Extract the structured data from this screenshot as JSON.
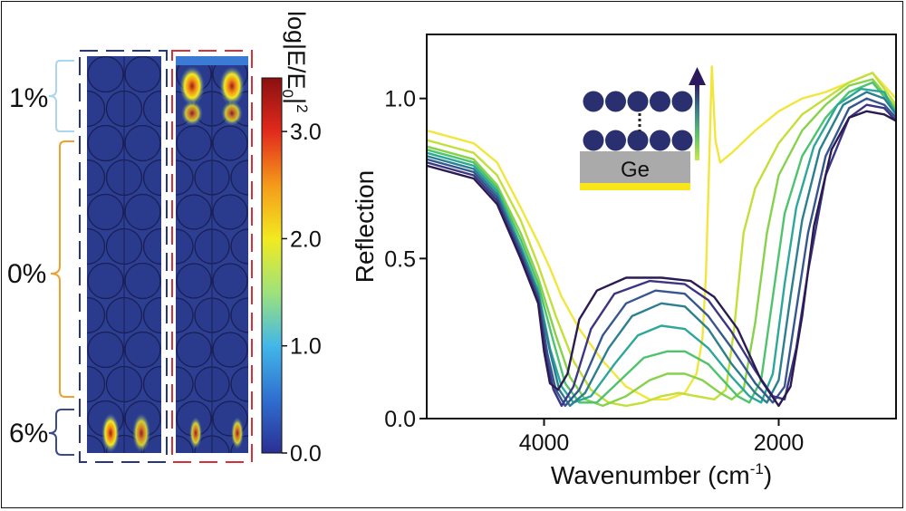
{
  "field_panel": {
    "colorbar": {
      "label": "log|E/E0|²",
      "ticks": [
        "0.0",
        "1.0",
        "2.0",
        "3.0"
      ],
      "tick_values": [
        0,
        1,
        2,
        3
      ],
      "range": [
        0,
        3.5
      ],
      "stops": [
        "#2b2f93",
        "#2f6fd0",
        "#42b7e8",
        "#9fe27a",
        "#f2ea20",
        "#f59a1a",
        "#e22a1c",
        "#8a1010"
      ]
    },
    "region_labels": [
      {
        "text": "1%",
        "color": "#aad6ee"
      },
      {
        "text": "0%",
        "color": "#f0a030"
      },
      {
        "text": "6%",
        "color": "#3a4a8a"
      }
    ],
    "frame_colors": {
      "left": "#2a3580",
      "right": "#d8303a"
    }
  },
  "chart_data": {
    "type": "line",
    "title": "",
    "xlabel": "Wavenumber (cm",
    "xlabel_superscript": "-1",
    "ylabel": "Reflection",
    "xlim": [
      5000,
      1000
    ],
    "ylim": [
      0,
      1.2
    ],
    "x_ticks": [
      4000,
      2000
    ],
    "y_ticks": [
      0.0,
      0.5,
      1.0
    ],
    "y_tick_labels": [
      "0.0",
      "0.5",
      "1.0"
    ],
    "grid": false,
    "legend": "none",
    "inset": {
      "substrate_label": "Ge",
      "arrow_colors": [
        "#2d1a5e",
        "#3b7a8c",
        "#5ec26a",
        "#c8e84a"
      ],
      "substrate_color": "#aaaaaa",
      "layer_color": "#f7e618",
      "sphere_color": "#2a2f6f"
    },
    "series": [
      {
        "color": "#f2e63d",
        "x": [
          5000,
          4600,
          4400,
          4200,
          4050,
          3950,
          3850,
          3700,
          3500,
          3300,
          3100,
          2950,
          2800,
          2700,
          2650,
          2620,
          2600,
          2570,
          2540,
          2500,
          2400,
          2200,
          2000,
          1800,
          1600,
          1400,
          1200,
          1000
        ],
        "y": [
          0.9,
          0.86,
          0.8,
          0.66,
          0.55,
          0.47,
          0.38,
          0.28,
          0.18,
          0.1,
          0.06,
          0.06,
          0.08,
          0.14,
          0.25,
          0.45,
          0.7,
          1.1,
          0.87,
          0.8,
          0.83,
          0.9,
          0.96,
          1.0,
          1.02,
          1.05,
          1.08,
          1.0
        ]
      },
      {
        "color": "#c2df3a",
        "x": [
          5000,
          4600,
          4400,
          4200,
          4050,
          3900,
          3750,
          3600,
          3450,
          3300,
          3150,
          3000,
          2850,
          2700,
          2550,
          2450,
          2380,
          2300,
          2200,
          2000,
          1800,
          1600,
          1400,
          1200,
          1000
        ],
        "y": [
          0.87,
          0.83,
          0.76,
          0.62,
          0.48,
          0.32,
          0.18,
          0.09,
          0.05,
          0.04,
          0.05,
          0.07,
          0.08,
          0.07,
          0.06,
          0.09,
          0.28,
          0.58,
          0.72,
          0.86,
          0.95,
          1.0,
          1.05,
          1.08,
          0.98
        ]
      },
      {
        "color": "#86d24a",
        "x": [
          5000,
          4600,
          4400,
          4200,
          4050,
          3900,
          3780,
          3650,
          3500,
          3300,
          3100,
          2950,
          2800,
          2650,
          2500,
          2400,
          2300,
          2200,
          2100,
          2000,
          1800,
          1600,
          1400,
          1200,
          1000
        ],
        "y": [
          0.85,
          0.81,
          0.73,
          0.58,
          0.44,
          0.26,
          0.13,
          0.06,
          0.04,
          0.07,
          0.12,
          0.14,
          0.14,
          0.12,
          0.08,
          0.06,
          0.09,
          0.3,
          0.58,
          0.76,
          0.9,
          0.98,
          1.04,
          1.06,
          0.97
        ]
      },
      {
        "color": "#4ec36d",
        "x": [
          5000,
          4600,
          4400,
          4200,
          4050,
          3920,
          3820,
          3700,
          3550,
          3350,
          3150,
          2950,
          2800,
          2600,
          2450,
          2350,
          2250,
          2150,
          2050,
          1950,
          1800,
          1600,
          1400,
          1200,
          1000
        ],
        "y": [
          0.84,
          0.8,
          0.72,
          0.56,
          0.42,
          0.24,
          0.11,
          0.05,
          0.05,
          0.12,
          0.19,
          0.21,
          0.21,
          0.17,
          0.11,
          0.07,
          0.05,
          0.12,
          0.38,
          0.64,
          0.82,
          0.94,
          1.02,
          1.05,
          0.96
        ]
      },
      {
        "color": "#2ca79a",
        "x": [
          5000,
          4600,
          4400,
          4200,
          4050,
          3950,
          3850,
          3750,
          3600,
          3400,
          3200,
          3000,
          2800,
          2600,
          2400,
          2250,
          2150,
          2050,
          1950,
          1850,
          1700,
          1500,
          1300,
          1100,
          1000
        ],
        "y": [
          0.83,
          0.79,
          0.71,
          0.54,
          0.4,
          0.22,
          0.1,
          0.05,
          0.07,
          0.17,
          0.26,
          0.29,
          0.28,
          0.22,
          0.13,
          0.07,
          0.05,
          0.14,
          0.42,
          0.66,
          0.85,
          0.98,
          1.03,
          1.02,
          0.95
        ]
      },
      {
        "color": "#2c7f8f",
        "x": [
          5000,
          4600,
          4400,
          4200,
          4050,
          3950,
          3870,
          3780,
          3650,
          3450,
          3250,
          3000,
          2800,
          2600,
          2400,
          2200,
          2100,
          2000,
          1900,
          1800,
          1650,
          1450,
          1250,
          1100,
          1000
        ],
        "y": [
          0.82,
          0.78,
          0.7,
          0.53,
          0.39,
          0.21,
          0.09,
          0.04,
          0.08,
          0.22,
          0.32,
          0.36,
          0.35,
          0.28,
          0.17,
          0.08,
          0.05,
          0.12,
          0.38,
          0.62,
          0.84,
          0.98,
          1.02,
          1.0,
          0.95
        ]
      },
      {
        "color": "#35578e",
        "x": [
          5000,
          4600,
          4400,
          4200,
          4050,
          3970,
          3900,
          3820,
          3700,
          3500,
          3300,
          3050,
          2800,
          2600,
          2400,
          2200,
          2050,
          1950,
          1850,
          1750,
          1600,
          1400,
          1250,
          1100,
          1000
        ],
        "y": [
          0.81,
          0.77,
          0.69,
          0.52,
          0.38,
          0.2,
          0.09,
          0.04,
          0.09,
          0.26,
          0.36,
          0.4,
          0.39,
          0.32,
          0.22,
          0.11,
          0.05,
          0.1,
          0.34,
          0.58,
          0.82,
          0.97,
          1.0,
          0.98,
          0.94
        ]
      },
      {
        "color": "#3c3583",
        "x": [
          5000,
          4600,
          4400,
          4200,
          4050,
          3980,
          3920,
          3850,
          3750,
          3600,
          3400,
          3100,
          2800,
          2600,
          2400,
          2200,
          2050,
          1950,
          1850,
          1750,
          1600,
          1400,
          1250,
          1100,
          1000
        ],
        "y": [
          0.8,
          0.76,
          0.68,
          0.51,
          0.37,
          0.19,
          0.09,
          0.04,
          0.1,
          0.28,
          0.39,
          0.43,
          0.42,
          0.37,
          0.27,
          0.15,
          0.07,
          0.06,
          0.22,
          0.46,
          0.76,
          0.94,
          0.98,
          0.97,
          0.93
        ]
      },
      {
        "color": "#2b1b52",
        "x": [
          5000,
          4600,
          4400,
          4200,
          4050,
          4000,
          3950,
          3880,
          3800,
          3700,
          3550,
          3300,
          3000,
          2750,
          2550,
          2350,
          2150,
          2000,
          1900,
          1800,
          1700,
          1550,
          1400,
          1250,
          1100,
          1000
        ],
        "y": [
          0.79,
          0.75,
          0.67,
          0.5,
          0.36,
          0.21,
          0.11,
          0.09,
          0.14,
          0.31,
          0.4,
          0.44,
          0.44,
          0.43,
          0.38,
          0.28,
          0.12,
          0.04,
          0.1,
          0.32,
          0.6,
          0.84,
          0.94,
          0.96,
          0.95,
          0.93
        ]
      }
    ]
  }
}
